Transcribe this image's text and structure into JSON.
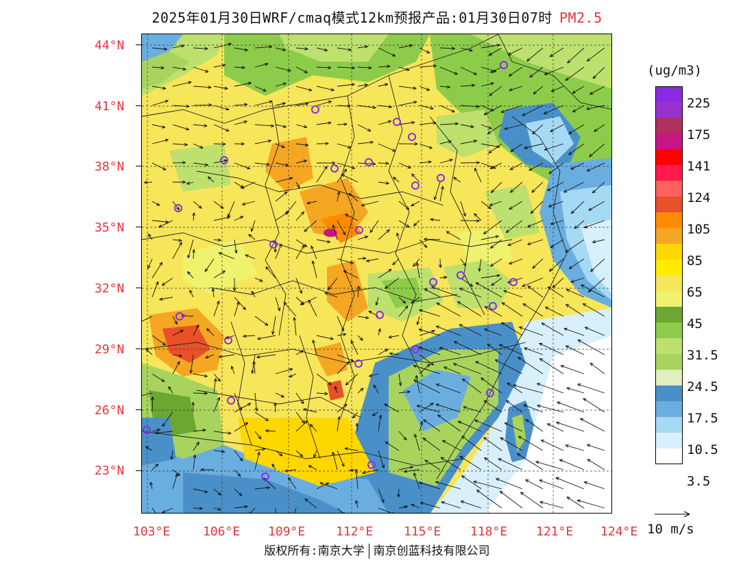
{
  "title": {
    "main": "2025年01月30日WRF/cmaq模式12km预报产品:01月30日07时",
    "pollutant": "PM2.5"
  },
  "latitude_labels": [
    "44°N",
    "41°N",
    "38°N",
    "35°N",
    "32°N",
    "29°N",
    "26°N",
    "23°N"
  ],
  "longitude_labels": [
    "103°E",
    "106°E",
    "109°E",
    "112°E",
    "115°E",
    "118°E",
    "121°E",
    "124°E"
  ],
  "colorbar": {
    "unit": "(ug/m3)",
    "labels": [
      "225",
      "175",
      "141",
      "124",
      "105",
      "85",
      "65",
      "45",
      "31.5",
      "24.5",
      "17.5",
      "10.5",
      "3.5"
    ],
    "colors": [
      "#8a2be2",
      "#9932cc",
      "#b03060",
      "#c71585",
      "#ff0000",
      "#ff1a4a",
      "#ff6060",
      "#e8502a",
      "#ff8c00",
      "#f5a623",
      "#ffd700",
      "#ffeb00",
      "#f7e55a",
      "#eef26e",
      "#6aa832",
      "#8ccc4a",
      "#bde06e",
      "#a8d45e",
      "#e0eec0",
      "#4a90c8",
      "#6aaee0",
      "#a6daf4",
      "#d8f0fc",
      "#ffffff"
    ]
  },
  "wind_legend": "10 m/s",
  "footer": {
    "left": "版权所有:南京大学",
    "right": "南京创蓝科技有限公司"
  },
  "city_markers": 26
}
